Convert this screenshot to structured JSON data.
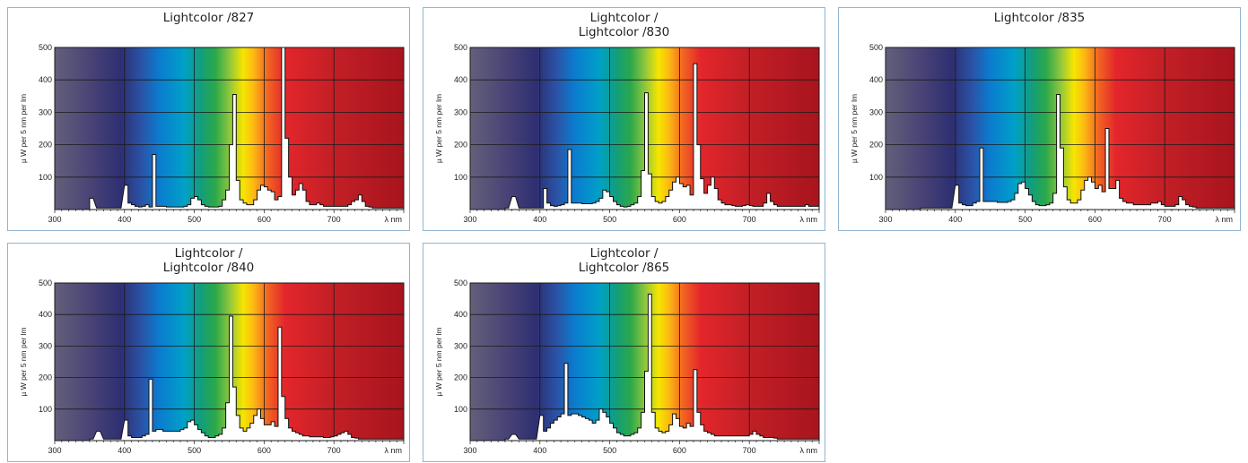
{
  "chart_data": [
    {
      "type": "area",
      "title_lines": [
        "Lightcolor /827"
      ],
      "ylabel": "µ W per 5 nm per lm",
      "xunit": "λ nm",
      "xlim": [
        300,
        800
      ],
      "ylim": [
        0,
        500
      ],
      "xticks": [
        300,
        400,
        500,
        600,
        700
      ],
      "yticks": [
        100,
        200,
        300,
        400,
        500
      ],
      "x": [
        350,
        360,
        370,
        380,
        390,
        400,
        405,
        410,
        415,
        420,
        425,
        430,
        435,
        440,
        445,
        450,
        455,
        460,
        465,
        470,
        475,
        480,
        485,
        490,
        495,
        500,
        505,
        510,
        515,
        520,
        525,
        530,
        535,
        540,
        545,
        550,
        555,
        560,
        565,
        570,
        575,
        580,
        585,
        590,
        595,
        600,
        605,
        610,
        615,
        620,
        625,
        630,
        635,
        640,
        645,
        650,
        655,
        660,
        665,
        670,
        675,
        680,
        685,
        690,
        695,
        700,
        705,
        710,
        715,
        720,
        725,
        730,
        735,
        740,
        745,
        750,
        755,
        760,
        765,
        770,
        775,
        780,
        785,
        790,
        795
      ],
      "y": [
        35,
        5,
        5,
        5,
        5,
        75,
        20,
        15,
        10,
        8,
        10,
        15,
        8,
        170,
        10,
        10,
        10,
        8,
        8,
        8,
        8,
        8,
        10,
        15,
        35,
        40,
        30,
        15,
        10,
        8,
        8,
        8,
        10,
        30,
        60,
        200,
        355,
        90,
        30,
        20,
        15,
        15,
        30,
        60,
        75,
        70,
        60,
        55,
        30,
        40,
        500,
        220,
        100,
        45,
        60,
        80,
        60,
        25,
        15,
        15,
        20,
        15,
        10,
        10,
        10,
        10,
        10,
        10,
        10,
        15,
        25,
        30,
        45,
        25,
        10,
        8,
        5,
        5,
        5,
        5,
        5,
        5,
        5,
        5,
        5
      ],
      "series": []
    },
    {
      "type": "area",
      "title_lines": [
        "Lightcolor /",
        "Lightcolor /830"
      ],
      "ylabel": "µ W per 5 nm per lm",
      "xunit": "λ nm",
      "xlim": [
        300,
        800
      ],
      "ylim": [
        0,
        500
      ],
      "xticks": [
        300,
        400,
        500,
        600,
        700
      ],
      "yticks": [
        100,
        200,
        300,
        400,
        500
      ],
      "x": [
        350,
        360,
        370,
        380,
        390,
        400,
        405,
        410,
        415,
        420,
        425,
        430,
        435,
        440,
        445,
        450,
        455,
        460,
        465,
        470,
        475,
        480,
        485,
        490,
        495,
        500,
        505,
        510,
        515,
        520,
        525,
        530,
        535,
        540,
        545,
        550,
        555,
        560,
        565,
        570,
        575,
        580,
        585,
        590,
        595,
        600,
        605,
        610,
        615,
        620,
        625,
        630,
        635,
        640,
        645,
        650,
        655,
        660,
        665,
        670,
        675,
        680,
        685,
        690,
        695,
        700,
        705,
        710,
        715,
        720,
        725,
        730,
        735,
        740,
        745,
        750,
        755,
        760,
        765,
        770,
        775,
        780,
        785,
        790,
        795
      ],
      "y": [
        5,
        40,
        5,
        5,
        5,
        5,
        65,
        20,
        12,
        10,
        12,
        15,
        20,
        185,
        20,
        20,
        20,
        18,
        18,
        18,
        20,
        25,
        35,
        60,
        55,
        40,
        25,
        15,
        10,
        8,
        10,
        15,
        20,
        40,
        120,
        360,
        110,
        40,
        25,
        20,
        25,
        40,
        60,
        85,
        100,
        80,
        70,
        75,
        45,
        450,
        200,
        95,
        50,
        75,
        100,
        65,
        30,
        20,
        15,
        15,
        12,
        10,
        10,
        12,
        15,
        12,
        10,
        10,
        10,
        20,
        50,
        25,
        15,
        10,
        10,
        10,
        10,
        10,
        10,
        10,
        10,
        15,
        10,
        10,
        10
      ],
      "series": []
    },
    {
      "type": "area",
      "title_lines": [
        "Lightcolor /835"
      ],
      "ylabel": "µ W per 5 nm per lm",
      "xunit": "λ nm",
      "xlim": [
        300,
        800
      ],
      "ylim": [
        0,
        500
      ],
      "xticks": [
        300,
        400,
        500,
        600,
        700
      ],
      "yticks": [
        100,
        200,
        300,
        400,
        500
      ],
      "x": [
        350,
        360,
        370,
        380,
        390,
        400,
        405,
        410,
        415,
        420,
        425,
        430,
        435,
        440,
        445,
        450,
        455,
        460,
        465,
        470,
        475,
        480,
        485,
        490,
        495,
        500,
        505,
        510,
        515,
        520,
        525,
        530,
        535,
        540,
        545,
        550,
        555,
        560,
        565,
        570,
        575,
        580,
        585,
        590,
        595,
        600,
        605,
        610,
        615,
        620,
        625,
        630,
        635,
        640,
        645,
        650,
        655,
        660,
        665,
        670,
        675,
        680,
        685,
        690,
        695,
        700,
        705,
        710,
        715,
        720,
        725,
        730,
        735,
        740,
        745,
        750,
        755,
        760,
        765,
        770,
        775,
        780,
        785,
        790,
        795
      ],
      "y": [
        5,
        5,
        5,
        5,
        5,
        75,
        20,
        15,
        12,
        12,
        20,
        25,
        190,
        25,
        25,
        25,
        25,
        22,
        22,
        22,
        25,
        30,
        50,
        80,
        85,
        65,
        45,
        25,
        15,
        12,
        12,
        15,
        20,
        50,
        355,
        190,
        70,
        30,
        20,
        20,
        30,
        60,
        90,
        100,
        85,
        65,
        75,
        55,
        250,
        65,
        65,
        90,
        35,
        25,
        20,
        20,
        15,
        15,
        15,
        15,
        15,
        20,
        20,
        25,
        15,
        10,
        10,
        10,
        15,
        40,
        30,
        15,
        10,
        8,
        5,
        5,
        5,
        5,
        5,
        5,
        5,
        5,
        5,
        5,
        5
      ],
      "series": []
    },
    {
      "type": "area",
      "title_lines": [
        "Lightcolor /",
        "Lightcolor /840"
      ],
      "ylabel": "µ W per 5 nm per lm",
      "xunit": "λ nm",
      "xlim": [
        300,
        800
      ],
      "ylim": [
        0,
        500
      ],
      "xticks": [
        300,
        400,
        500,
        600,
        700
      ],
      "yticks": [
        100,
        200,
        300,
        400,
        500
      ],
      "x": [
        350,
        360,
        370,
        380,
        390,
        400,
        405,
        410,
        415,
        420,
        425,
        430,
        435,
        440,
        445,
        450,
        455,
        460,
        465,
        470,
        475,
        480,
        485,
        490,
        495,
        500,
        505,
        510,
        515,
        520,
        525,
        530,
        535,
        540,
        545,
        550,
        555,
        560,
        565,
        570,
        575,
        580,
        585,
        590,
        595,
        600,
        605,
        610,
        615,
        620,
        625,
        630,
        635,
        640,
        645,
        650,
        655,
        660,
        665,
        670,
        675,
        680,
        685,
        690,
        695,
        700,
        705,
        710,
        715,
        720,
        725,
        730,
        735,
        740,
        745,
        750,
        755,
        760,
        765,
        770,
        775,
        780,
        785,
        790,
        795
      ],
      "y": [
        5,
        30,
        5,
        5,
        5,
        65,
        15,
        10,
        10,
        10,
        15,
        20,
        195,
        30,
        35,
        35,
        30,
        30,
        30,
        30,
        30,
        35,
        40,
        60,
        65,
        50,
        35,
        25,
        15,
        10,
        10,
        15,
        20,
        40,
        120,
        395,
        170,
        80,
        40,
        30,
        40,
        55,
        80,
        100,
        70,
        50,
        50,
        60,
        45,
        360,
        140,
        70,
        40,
        30,
        25,
        20,
        15,
        15,
        12,
        12,
        12,
        12,
        10,
        10,
        12,
        15,
        20,
        25,
        30,
        20,
        10,
        8,
        5,
        5,
        5,
        5,
        5,
        5,
        5,
        5,
        5,
        5,
        5,
        5,
        5
      ],
      "series": []
    },
    {
      "type": "area",
      "title_lines": [
        "Lightcolor /",
        "Lightcolor /865"
      ],
      "ylabel": "µ W per 5 nm per lm",
      "xunit": "λ nm",
      "xlim": [
        300,
        800
      ],
      "ylim": [
        0,
        500
      ],
      "xticks": [
        300,
        400,
        500,
        600,
        700
      ],
      "yticks": [
        100,
        200,
        300,
        400,
        500
      ],
      "x": [
        350,
        360,
        370,
        380,
        390,
        400,
        405,
        410,
        415,
        420,
        425,
        430,
        435,
        440,
        445,
        450,
        455,
        460,
        465,
        470,
        475,
        480,
        485,
        490,
        495,
        500,
        505,
        510,
        515,
        520,
        525,
        530,
        535,
        540,
        545,
        550,
        555,
        560,
        565,
        570,
        575,
        580,
        585,
        590,
        595,
        600,
        605,
        610,
        615,
        620,
        625,
        630,
        635,
        640,
        645,
        650,
        655,
        660,
        665,
        670,
        675,
        680,
        685,
        690,
        695,
        700,
        705,
        710,
        715,
        720,
        725,
        730,
        735,
        740,
        745,
        750,
        755,
        760,
        765,
        770,
        775,
        780,
        785,
        790,
        795
      ],
      "y": [
        5,
        20,
        5,
        5,
        5,
        80,
        30,
        40,
        55,
        65,
        75,
        85,
        245,
        80,
        85,
        85,
        80,
        75,
        70,
        65,
        55,
        65,
        100,
        90,
        75,
        55,
        40,
        25,
        20,
        15,
        15,
        20,
        25,
        40,
        90,
        220,
        465,
        90,
        40,
        30,
        25,
        30,
        50,
        85,
        70,
        45,
        40,
        55,
        45,
        225,
        90,
        50,
        30,
        25,
        20,
        15,
        15,
        15,
        15,
        15,
        15,
        15,
        15,
        15,
        15,
        20,
        30,
        20,
        15,
        10,
        10,
        10,
        8,
        5,
        5,
        5,
        5,
        5,
        5,
        5,
        5,
        5,
        5,
        5,
        5
      ],
      "series": []
    }
  ]
}
